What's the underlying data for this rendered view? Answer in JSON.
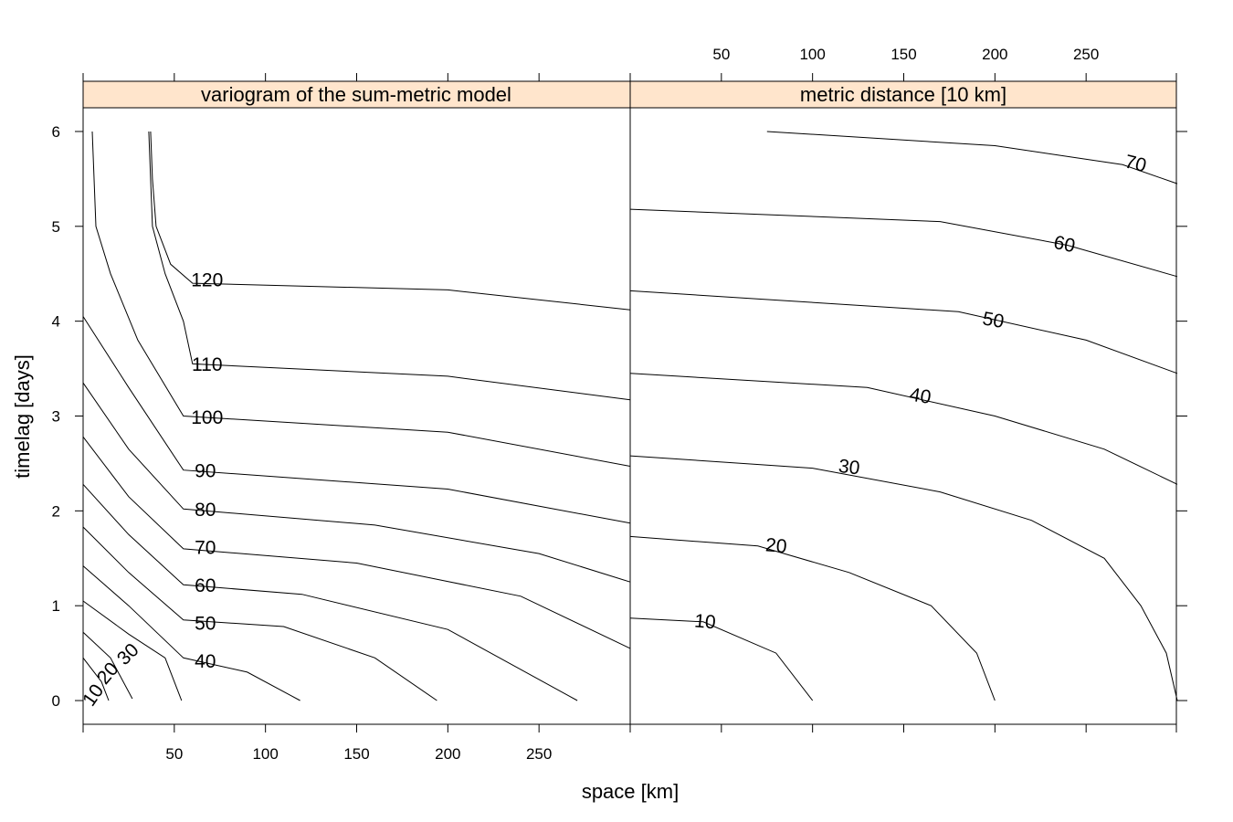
{
  "chart_data": {
    "type": "contour",
    "xlabel": "space [km]",
    "ylabel": "timelag [days]",
    "x_ticks": [
      50,
      100,
      150,
      200,
      250
    ],
    "y_ticks": [
      0,
      1,
      2,
      3,
      4,
      5,
      6
    ],
    "xlim": [
      0,
      300
    ],
    "ylim": [
      -0.25,
      6.25
    ],
    "strip_color": "#FFE5CC",
    "panels": [
      {
        "title": "variogram of the sum-metric model",
        "contours": [
          {
            "level": "10",
            "points": [
              [
                0,
                0.45
              ],
              [
                10,
                0.2
              ],
              [
                14,
                0
              ]
            ]
          },
          {
            "level": "20",
            "points": [
              [
                0,
                0.72
              ],
              [
                15,
                0.45
              ],
              [
                27,
                0.02
              ]
            ]
          },
          {
            "level": "30",
            "points": [
              [
                0,
                1.05
              ],
              [
                25,
                0.7
              ],
              [
                45,
                0.45
              ],
              [
                54,
                0
              ]
            ]
          },
          {
            "level": "40",
            "points": [
              [
                0,
                1.42
              ],
              [
                25,
                1.0
              ],
              [
                55,
                0.45
              ],
              [
                90,
                0.3
              ],
              [
                119,
                0
              ]
            ]
          },
          {
            "level": "50",
            "points": [
              [
                0,
                1.83
              ],
              [
                25,
                1.35
              ],
              [
                55,
                0.85
              ],
              [
                110,
                0.78
              ],
              [
                160,
                0.45
              ],
              [
                194,
                0
              ]
            ]
          },
          {
            "level": "60",
            "points": [
              [
                0,
                2.28
              ],
              [
                25,
                1.75
              ],
              [
                55,
                1.22
              ],
              [
                120,
                1.12
              ],
              [
                200,
                0.75
              ],
              [
                271,
                0
              ]
            ]
          },
          {
            "level": "70",
            "points": [
              [
                0,
                2.78
              ],
              [
                25,
                2.15
              ],
              [
                55,
                1.6
              ],
              [
                150,
                1.45
              ],
              [
                240,
                1.1
              ],
              [
                300,
                0.55
              ]
            ]
          },
          {
            "level": "80",
            "points": [
              [
                0,
                3.35
              ],
              [
                25,
                2.65
              ],
              [
                55,
                2.02
              ],
              [
                160,
                1.85
              ],
              [
                250,
                1.55
              ],
              [
                300,
                1.25
              ]
            ]
          },
          {
            "level": "90",
            "points": [
              [
                0,
                4.05
              ],
              [
                25,
                3.3
              ],
              [
                55,
                2.43
              ],
              [
                200,
                2.23
              ],
              [
                300,
                1.87
              ]
            ]
          },
          {
            "level": "100",
            "points": [
              [
                5,
                6.0
              ],
              [
                7,
                5.0
              ],
              [
                15,
                4.5
              ],
              [
                30,
                3.8
              ],
              [
                55,
                3.0
              ],
              [
                200,
                2.83
              ],
              [
                300,
                2.47
              ]
            ]
          },
          {
            "level": "110",
            "points": [
              [
                36,
                6.0
              ],
              [
                38,
                5.0
              ],
              [
                45,
                4.5
              ],
              [
                55,
                4.0
              ],
              [
                60,
                3.55
              ],
              [
                200,
                3.42
              ],
              [
                300,
                3.17
              ]
            ]
          },
          {
            "level": "120",
            "points": [
              [
                37,
                6.0
              ],
              [
                38,
                5.5
              ],
              [
                40,
                5.0
              ],
              [
                48,
                4.6
              ],
              [
                60,
                4.4
              ],
              [
                200,
                4.33
              ],
              [
                300,
                4.12
              ]
            ]
          }
        ]
      },
      {
        "title": "metric distance [10 km]",
        "contours": [
          {
            "level": "10",
            "points": [
              [
                0,
                0.87
              ],
              [
                40,
                0.83
              ],
              [
                80,
                0.5
              ],
              [
                100,
                0
              ]
            ]
          },
          {
            "level": "20",
            "points": [
              [
                0,
                1.73
              ],
              [
                70,
                1.63
              ],
              [
                120,
                1.35
              ],
              [
                165,
                1.0
              ],
              [
                190,
                0.5
              ],
              [
                200,
                0
              ]
            ]
          },
          {
            "level": "30",
            "points": [
              [
                0,
                2.58
              ],
              [
                100,
                2.45
              ],
              [
                170,
                2.2
              ],
              [
                220,
                1.9
              ],
              [
                260,
                1.5
              ],
              [
                280,
                1.0
              ],
              [
                294,
                0.5
              ],
              [
                300,
                0
              ]
            ]
          },
          {
            "level": "40",
            "points": [
              [
                0,
                3.45
              ],
              [
                130,
                3.3
              ],
              [
                200,
                3.0
              ],
              [
                260,
                2.65
              ],
              [
                300,
                2.28
              ]
            ]
          },
          {
            "level": "50",
            "points": [
              [
                0,
                4.32
              ],
              [
                180,
                4.1
              ],
              [
                250,
                3.8
              ],
              [
                300,
                3.45
              ]
            ]
          },
          {
            "level": "60",
            "points": [
              [
                0,
                5.18
              ],
              [
                170,
                5.05
              ],
              [
                240,
                4.8
              ],
              [
                300,
                4.47
              ]
            ]
          },
          {
            "level": "70",
            "points": [
              [
                75,
                6.0
              ],
              [
                200,
                5.85
              ],
              [
                270,
                5.65
              ],
              [
                300,
                5.45
              ]
            ]
          }
        ]
      }
    ]
  }
}
